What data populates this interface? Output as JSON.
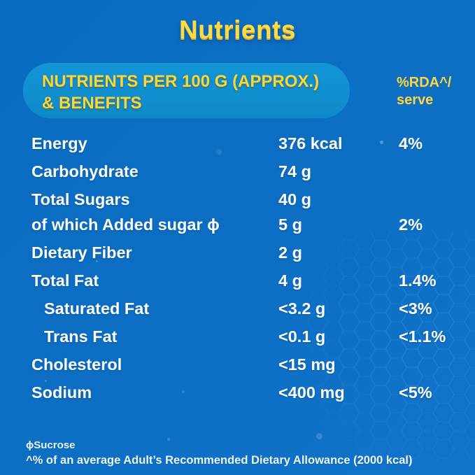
{
  "page": {
    "title": "Nutrients"
  },
  "header": {
    "box_line1": "NUTRIENTS PER 100 G (APPROX.)",
    "box_line2": "& BENEFITS",
    "rda_line1": "%RDA^/",
    "rda_line2": "serve"
  },
  "table": {
    "rows": [
      {
        "label": "Energy",
        "value": "376 kcal",
        "rda": "4%",
        "indent": false
      },
      {
        "label": "Carbohydrate",
        "value": "74 g",
        "rda": "",
        "indent": false
      },
      {
        "label": "Total Sugars",
        "value": "40 g",
        "rda": "",
        "indent": false
      },
      {
        "label": "of which Added sugar ϕ",
        "value": "5 g",
        "rda": "2%",
        "indent": false
      },
      {
        "label": "Dietary Fiber",
        "value": "2 g",
        "rda": "",
        "indent": false
      },
      {
        "label": "Total Fat",
        "value": "4 g",
        "rda": "1.4%",
        "indent": false
      },
      {
        "label": "Saturated Fat",
        "value": "<3.2 g",
        "rda": "<3%",
        "indent": true
      },
      {
        "label": "Trans Fat",
        "value": "<0.1 g",
        "rda": "<1.1%",
        "indent": true
      },
      {
        "label": "Cholesterol",
        "value": "<15 mg",
        "rda": "",
        "indent": false
      },
      {
        "label": "Sodium",
        "value": "<400 mg",
        "rda": "<5%",
        "indent": false
      }
    ]
  },
  "footnotes": {
    "line1": "ϕSucrose",
    "line2": "^% of an average Adult’s Recommended Dietary Allowance (2000 kcal)"
  },
  "colors": {
    "background": "#0b6ec3",
    "header_box": "#1091cf",
    "accent_yellow": "#f9d73a",
    "text_white": "#ffffff"
  }
}
